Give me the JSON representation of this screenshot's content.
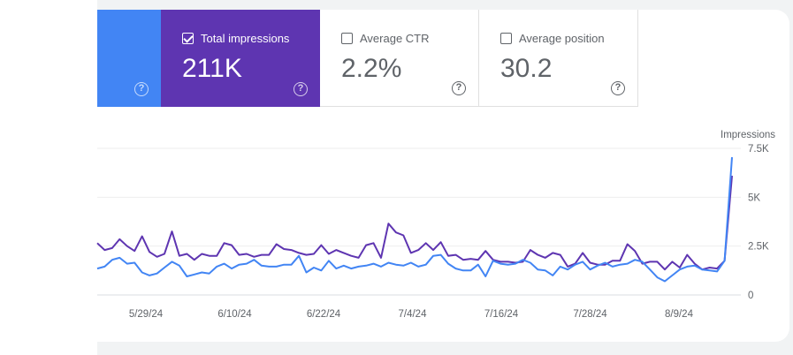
{
  "metrics": {
    "clicks": {
      "help_icon": "help-circle-icon",
      "color": "#4285f4"
    },
    "impressions": {
      "label": "Total impressions",
      "value": "211K",
      "checked": true,
      "color": "#5e35b1",
      "help_icon": "help-circle-icon"
    },
    "ctr": {
      "label": "Average CTR",
      "value": "2.2%",
      "checked": false,
      "help_icon": "help-circle-icon"
    },
    "position": {
      "label": "Average position",
      "value": "30.2",
      "checked": false,
      "help_icon": "help-circle-icon"
    }
  },
  "help_glyph": "?",
  "chart_data": {
    "type": "line",
    "ylabel": "Impressions",
    "yticks": [
      "0",
      "2.5K",
      "5K",
      "7.5K"
    ],
    "ylim": [
      0,
      7500
    ],
    "xticks": [
      "5/29/24",
      "6/10/24",
      "6/22/24",
      "7/4/24",
      "7/16/24",
      "7/28/24",
      "8/9/24"
    ],
    "grid": true,
    "series": [
      {
        "color": "#5e35b1",
        "values": [
          2650,
          2300,
          2400,
          2850,
          2500,
          2250,
          3000,
          2200,
          1950,
          2100,
          3250,
          2000,
          2100,
          1800,
          2100,
          2000,
          2000,
          2650,
          2550,
          2050,
          2100,
          1950,
          2050,
          2050,
          2600,
          2350,
          2300,
          2150,
          2050,
          2100,
          2550,
          2100,
          2300,
          2150,
          2000,
          1900,
          2550,
          2650,
          1900,
          3650,
          3200,
          3050,
          2150,
          2300,
          2650,
          2300,
          2700,
          2000,
          2050,
          1800,
          1850,
          1800,
          2250,
          1800,
          1700,
          1700,
          1650,
          1700,
          2300,
          2050,
          1900,
          2150,
          2050,
          1450,
          1600,
          2150,
          1650,
          1550,
          1550,
          1750,
          1750,
          2600,
          2250,
          1600,
          1700,
          1700,
          1300,
          1700,
          1400,
          2050,
          1600,
          1300,
          1400,
          1350,
          1750,
          6100
        ]
      },
      {
        "color": "#4285f4",
        "values": [
          1350,
          1450,
          1800,
          1900,
          1600,
          1650,
          1150,
          1000,
          1100,
          1400,
          1700,
          1500,
          950,
          1050,
          1150,
          1100,
          1450,
          1600,
          1350,
          1550,
          1600,
          1800,
          1500,
          1450,
          1450,
          1550,
          1550,
          2000,
          1150,
          1400,
          1250,
          1750,
          1350,
          1500,
          1350,
          1450,
          1500,
          1600,
          1450,
          1650,
          1550,
          1500,
          1650,
          1450,
          1550,
          2000,
          2050,
          1600,
          1350,
          1250,
          1250,
          1550,
          950,
          1750,
          1600,
          1550,
          1600,
          1800,
          1650,
          1300,
          1250,
          1000,
          1450,
          1300,
          1550,
          1700,
          1300,
          1500,
          1650,
          1450,
          1550,
          1600,
          1800,
          1700,
          1300,
          900,
          700,
          1000,
          1300,
          1450,
          1500,
          1300,
          1250,
          1200,
          1750,
          7050
        ]
      }
    ]
  }
}
